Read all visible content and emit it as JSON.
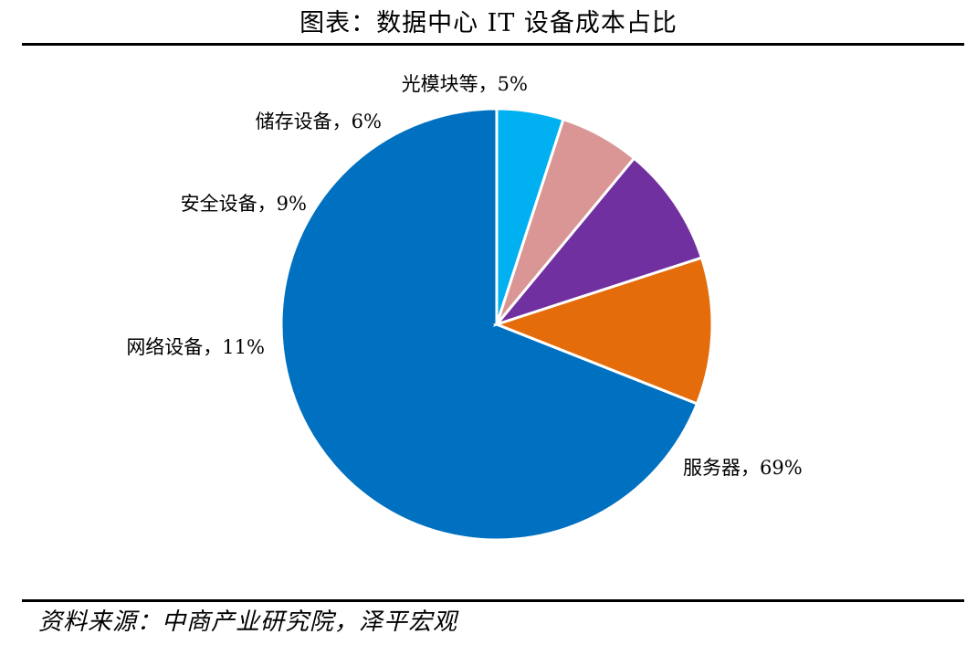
{
  "page": {
    "title": "图表：数据中心 IT 设备成本占比",
    "source": "资料来源：中商产业研究院，泽平宏观"
  },
  "chart_data": {
    "type": "pie",
    "title": "图表：数据中心 IT 设备成本占比",
    "slices": [
      {
        "name": "服务器",
        "value": 69,
        "label": "服务器，69%",
        "color": "#0070C0"
      },
      {
        "name": "网络设备",
        "value": 11,
        "label": "网络设备，11%",
        "color": "#E46C0A"
      },
      {
        "name": "安全设备",
        "value": 9,
        "label": "安全设备，9%",
        "color": "#7030A0"
      },
      {
        "name": "储存设备",
        "value": 6,
        "label": "储存设备，6%",
        "color": "#D99694"
      },
      {
        "name": "光模块等",
        "value": 5,
        "label": "光模块等，5%",
        "color": "#00B0F0"
      }
    ],
    "start": "12 o'clock",
    "direction": "counterclockwise",
    "legend": "none",
    "data_labels": "outside"
  }
}
